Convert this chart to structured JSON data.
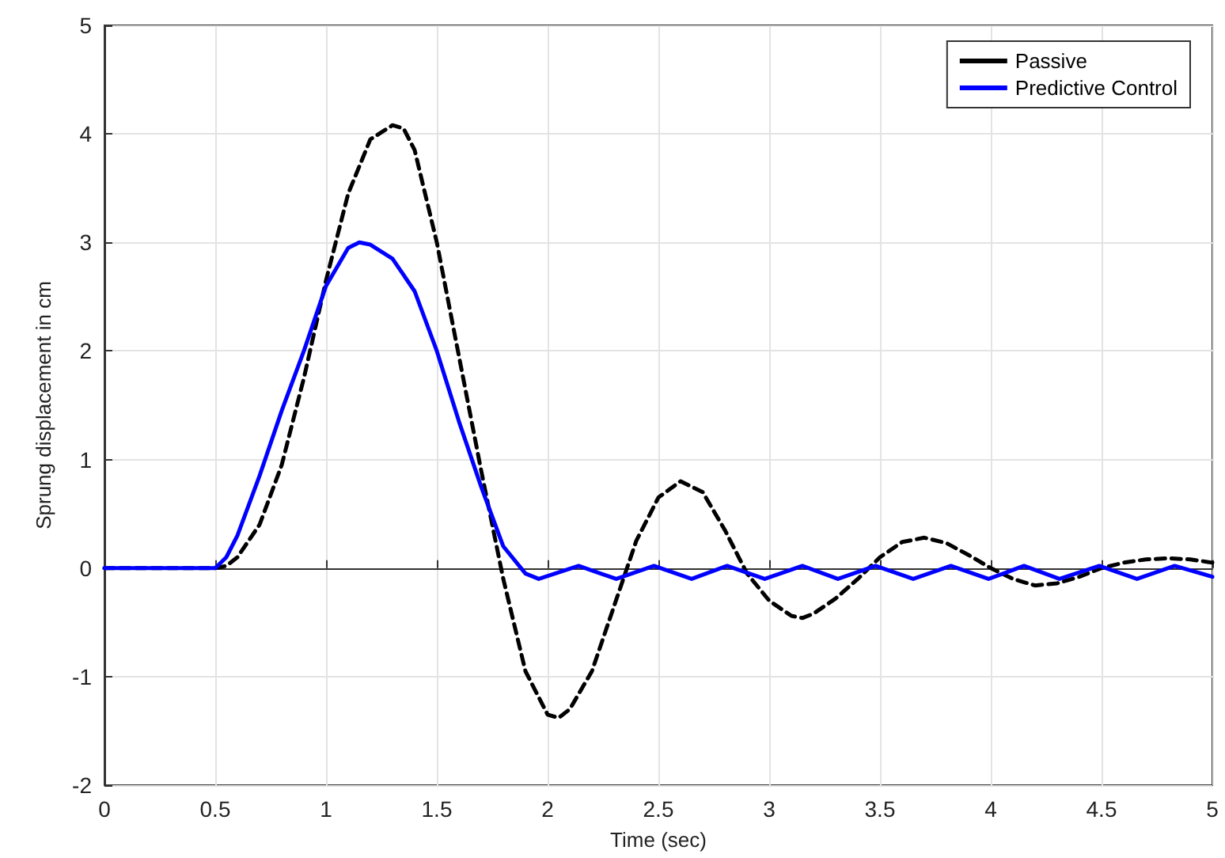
{
  "chart_data": {
    "type": "line",
    "xlabel": "Time (sec)",
    "ylabel": "Sprung displacement in cm",
    "xlim": [
      0,
      5
    ],
    "ylim": [
      -2,
      5
    ],
    "xticks": [
      0,
      0.5,
      1,
      1.5,
      2,
      2.5,
      3,
      3.5,
      4,
      4.5,
      5
    ],
    "yticks": [
      -2,
      -1,
      0,
      1,
      2,
      3,
      4,
      5
    ],
    "grid": true,
    "legend": "top right",
    "marker": "none",
    "series": [
      {
        "name": "Passive",
        "color": "#000000",
        "line_style": "dashed",
        "x": [
          0,
          0.5,
          0.55,
          0.6,
          0.7,
          0.8,
          0.9,
          1.0,
          1.1,
          1.2,
          1.3,
          1.35,
          1.4,
          1.5,
          1.6,
          1.7,
          1.8,
          1.9,
          2.0,
          2.05,
          2.1,
          2.2,
          2.3,
          2.4,
          2.5,
          2.6,
          2.7,
          2.8,
          2.9,
          3.0,
          3.1,
          3.15,
          3.2,
          3.3,
          3.4,
          3.5,
          3.6,
          3.7,
          3.8,
          3.9,
          4.0,
          4.1,
          4.2,
          4.3,
          4.4,
          4.5,
          4.6,
          4.7,
          4.8,
          4.9,
          5.0
        ],
        "values": [
          0,
          0,
          0.02,
          0.1,
          0.4,
          0.95,
          1.75,
          2.65,
          3.45,
          3.95,
          4.08,
          4.05,
          3.85,
          3.0,
          1.95,
          0.9,
          -0.1,
          -0.95,
          -1.35,
          -1.38,
          -1.3,
          -0.95,
          -0.35,
          0.25,
          0.65,
          0.8,
          0.7,
          0.35,
          -0.05,
          -0.3,
          -0.44,
          -0.46,
          -0.42,
          -0.28,
          -0.1,
          0.1,
          0.24,
          0.28,
          0.23,
          0.12,
          0.0,
          -0.1,
          -0.16,
          -0.14,
          -0.08,
          0.0,
          0.05,
          0.08,
          0.09,
          0.08,
          0.05
        ]
      },
      {
        "name": "Predictive Control",
        "color": "#0000ff",
        "line_style": "solid",
        "x": [
          0,
          0.5,
          0.55,
          0.6,
          0.7,
          0.8,
          0.9,
          1.0,
          1.1,
          1.15,
          1.2,
          1.3,
          1.4,
          1.5,
          1.6,
          1.7,
          1.8,
          1.9,
          1.96,
          2.14,
          2.31,
          2.48,
          2.65,
          2.81,
          2.98,
          3.15,
          3.31,
          3.48,
          3.65,
          3.82,
          3.99,
          4.15,
          4.31,
          4.49,
          4.66,
          4.83,
          5.0
        ],
        "values": [
          0,
          0,
          0.1,
          0.3,
          0.85,
          1.45,
          2.0,
          2.6,
          2.95,
          3.0,
          2.98,
          2.85,
          2.55,
          2.0,
          1.35,
          0.75,
          0.2,
          -0.05,
          -0.1,
          0.02,
          -0.1,
          0.02,
          -0.1,
          0.02,
          -0.1,
          0.02,
          -0.1,
          0.02,
          -0.1,
          0.02,
          -0.1,
          0.02,
          -0.1,
          0.02,
          -0.1,
          0.02,
          -0.08
        ]
      }
    ]
  }
}
